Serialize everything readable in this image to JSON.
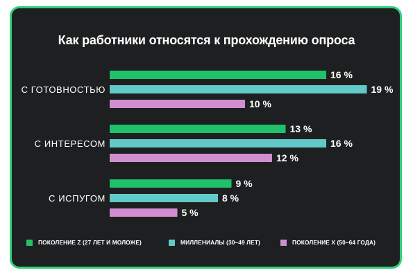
{
  "chart_data": {
    "type": "bar",
    "orientation": "horizontal",
    "title": "Как работники относятся к прохождению опроса",
    "categories": [
      "С ГОТОВНОСТЬЮ",
      "С ИНТЕРЕСОМ",
      "С ИСПУГОМ"
    ],
    "series": [
      {
        "name": "ПОКОЛЕНИЕ Z (27 ЛЕТ И МОЛОЖЕ)",
        "color": "#1fc26a",
        "values": [
          16,
          13,
          9
        ],
        "labels": [
          "16 %",
          "13 %",
          "9 %"
        ]
      },
      {
        "name": "МИЛЛЕНИАЛЫ (30–49 ЛЕТ)",
        "color": "#62c9c9",
        "values": [
          19,
          16,
          8
        ],
        "labels": [
          "19 %",
          "16 %",
          "8 %"
        ]
      },
      {
        "name": "ПОКОЛЕНИЕ X (50–64 ГОДА)",
        "color": "#d08ed0",
        "values": [
          10,
          12,
          5
        ],
        "labels": [
          "10 %",
          "12 %",
          "5 %"
        ]
      }
    ],
    "xlim": [
      0,
      19
    ],
    "grid": false,
    "legend_position": "bottom"
  }
}
